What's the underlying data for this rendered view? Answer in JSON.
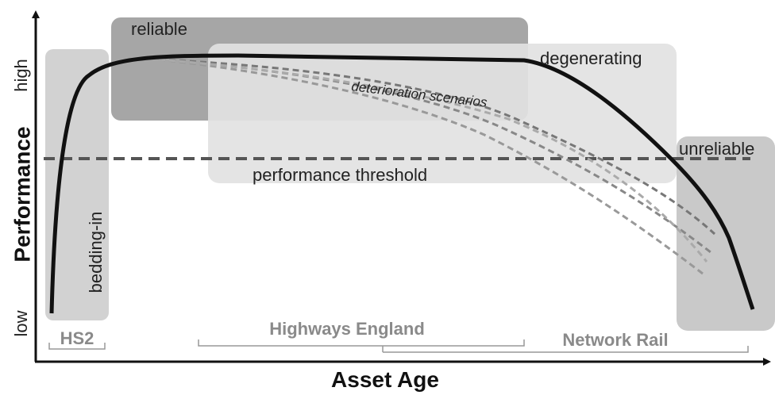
{
  "axes": {
    "y_label": "Performance",
    "y_high": "high",
    "y_low": "low",
    "x_label": "Asset Age"
  },
  "regions": {
    "bedding_in": "bedding-in",
    "reliable": "reliable",
    "degenerating": "degenerating",
    "unreliable": "unreliable"
  },
  "annotations": {
    "threshold": "performance threshold",
    "scenarios": "deterioration scenarios"
  },
  "operators": [
    "HS2",
    "Highways England",
    "Network Rail"
  ]
}
